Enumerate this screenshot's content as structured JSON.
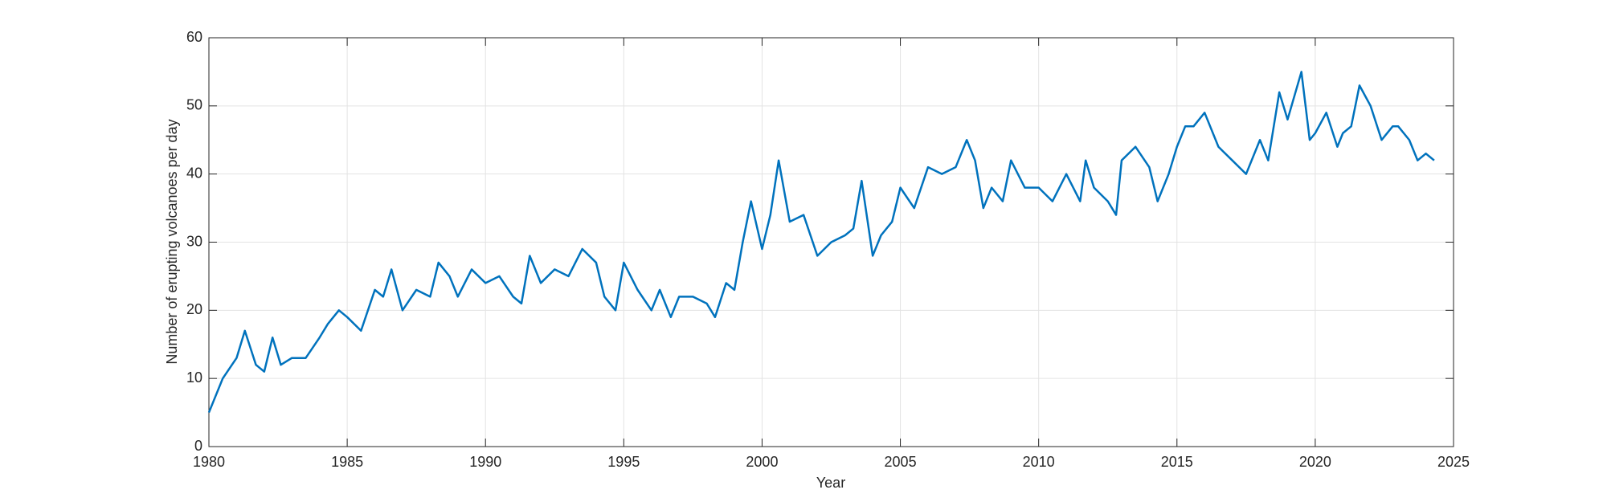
{
  "chart_data": {
    "type": "line",
    "x_label": "Year",
    "y_label": "Number of erupting volcanoes per day",
    "x": [
      1980.0,
      1980.5,
      1981.0,
      1981.3,
      1981.7,
      1982.0,
      1982.3,
      1982.6,
      1983.0,
      1983.5,
      1984.0,
      1984.3,
      1984.7,
      1985.0,
      1985.5,
      1986.0,
      1986.3,
      1986.6,
      1987.0,
      1987.5,
      1988.0,
      1988.3,
      1988.7,
      1989.0,
      1989.5,
      1990.0,
      1990.5,
      1991.0,
      1991.3,
      1991.6,
      1992.0,
      1992.5,
      1993.0,
      1993.5,
      1994.0,
      1994.3,
      1994.7,
      1995.0,
      1995.5,
      1996.0,
      1996.3,
      1996.7,
      1997.0,
      1997.5,
      1998.0,
      1998.3,
      1998.7,
      1999.0,
      1999.3,
      1999.6,
      2000.0,
      2000.3,
      2000.6,
      2001.0,
      2001.5,
      2002.0,
      2002.5,
      2003.0,
      2003.3,
      2003.6,
      2004.0,
      2004.3,
      2004.7,
      2005.0,
      2005.5,
      2006.0,
      2006.5,
      2007.0,
      2007.4,
      2007.7,
      2008.0,
      2008.3,
      2008.7,
      2009.0,
      2009.5,
      2010.0,
      2010.5,
      2011.0,
      2011.5,
      2011.7,
      2012.0,
      2012.5,
      2012.8,
      2013.0,
      2013.5,
      2014.0,
      2014.3,
      2014.7,
      2015.0,
      2015.3,
      2015.6,
      2016.0,
      2016.5,
      2017.0,
      2017.5,
      2018.0,
      2018.3,
      2018.7,
      2019.0,
      2019.5,
      2019.8,
      2020.0,
      2020.4,
      2020.8,
      2021.0,
      2021.3,
      2021.6,
      2022.0,
      2022.4,
      2022.8,
      2023.0,
      2023.4,
      2023.7,
      2024.0,
      2024.3
    ],
    "series": [
      {
        "name": "Erupting volcanoes",
        "color": "#0072bd",
        "values": [
          5,
          10,
          13,
          17,
          12,
          11,
          16,
          12,
          13,
          13,
          16,
          18,
          20,
          19,
          17,
          23,
          22,
          26,
          20,
          23,
          22,
          27,
          25,
          22,
          26,
          24,
          25,
          22,
          21,
          28,
          24,
          26,
          25,
          29,
          27,
          22,
          20,
          27,
          23,
          20,
          23,
          19,
          22,
          22,
          21,
          19,
          24,
          23,
          30,
          36,
          29,
          34,
          42,
          33,
          34,
          28,
          30,
          31,
          32,
          39,
          28,
          31,
          33,
          38,
          35,
          41,
          40,
          41,
          45,
          42,
          35,
          38,
          36,
          42,
          38,
          38,
          36,
          40,
          36,
          42,
          38,
          36,
          34,
          42,
          44,
          41,
          36,
          40,
          44,
          47,
          47,
          49,
          44,
          42,
          40,
          45,
          42,
          52,
          48,
          55,
          45,
          46,
          49,
          44,
          46,
          47,
          53,
          50,
          45,
          47,
          47,
          45,
          42,
          43,
          42
        ]
      }
    ],
    "xlim": [
      1980,
      2025
    ],
    "xticks": [
      1980,
      1985,
      1990,
      1995,
      2000,
      2005,
      2010,
      2015,
      2020,
      2025
    ],
    "ylim": [
      0,
      60
    ],
    "yticks": [
      0,
      10,
      20,
      30,
      40,
      50,
      60
    ],
    "grid": true
  }
}
